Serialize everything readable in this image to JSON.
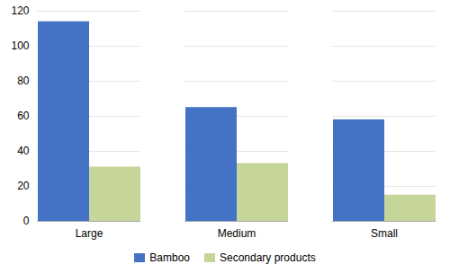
{
  "chart_data": {
    "type": "bar",
    "categories": [
      "Large",
      "Medium",
      "Small"
    ],
    "series": [
      {
        "name": "Bamboo",
        "color": "#4472C4",
        "values": [
          114,
          65,
          58
        ]
      },
      {
        "name": "Secondary products",
        "color": "#C6D69A",
        "values": [
          31,
          33,
          15
        ]
      }
    ],
    "ylim": [
      0,
      120
    ],
    "yticks": [
      0,
      20,
      40,
      60,
      80,
      100,
      120
    ],
    "grid": true,
    "legend": "bottom"
  }
}
